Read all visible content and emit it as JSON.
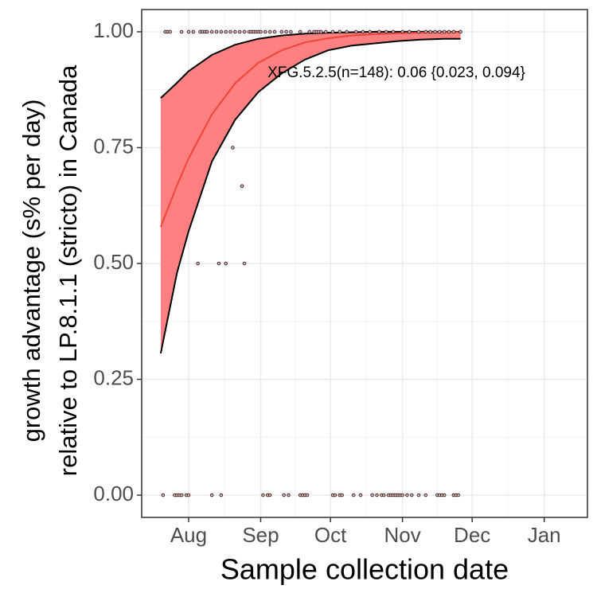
{
  "chart_data": {
    "type": "scatter",
    "y_label": [
      "growth advantage (s% per day)",
      "relative to LP.8.1.1 (stricto) in Canada"
    ],
    "x_label": "Sample collection date",
    "annotation": "XFG.5.2.5(n=148): 0.06 {0.023, 0.094}",
    "xlim": [
      -20.2,
      171.6
    ],
    "ylim": [
      -0.048,
      1.048
    ],
    "xticks": [
      {
        "value": 0,
        "label": "Aug"
      },
      {
        "value": 31,
        "label": "Sep"
      },
      {
        "value": 61,
        "label": "Oct"
      },
      {
        "value": 92,
        "label": "Nov"
      },
      {
        "value": 122,
        "label": "Dec"
      },
      {
        "value": 153,
        "label": "Jan"
      }
    ],
    "yticks": [
      {
        "value": 0,
        "label": "0.00"
      },
      {
        "value": 0.25,
        "label": "0.25"
      },
      {
        "value": 0.5,
        "label": "0.50"
      },
      {
        "value": 0.75,
        "label": "0.75"
      },
      {
        "value": 1,
        "label": "1.00"
      }
    ],
    "grid": true,
    "points": {
      "color": "#333333",
      "fill": "#f4b0b0",
      "x": [
        -10,
        -9,
        -8,
        -3,
        0,
        2,
        5,
        6,
        7,
        8,
        10,
        12,
        14,
        16,
        18,
        20,
        22,
        24,
        26,
        27,
        28,
        29,
        30,
        31,
        33,
        35,
        37,
        40,
        42,
        44,
        48,
        52,
        54,
        55,
        56,
        57,
        59,
        62,
        65,
        68,
        72,
        75,
        78,
        82,
        85,
        88,
        92,
        95,
        99,
        102,
        104,
        106,
        108,
        110,
        112,
        114,
        117,
        -11,
        -6,
        -5,
        -4,
        -3,
        -1,
        0,
        10,
        14,
        32,
        34,
        35,
        41,
        43,
        48,
        49,
        50,
        51,
        62,
        63,
        65,
        66,
        71,
        74,
        79,
        81,
        83,
        84,
        86,
        87,
        88,
        89,
        90,
        91,
        92,
        94,
        96,
        99,
        102,
        107,
        108,
        109,
        110,
        114,
        115,
        116,
        19,
        23,
        4,
        13,
        16,
        24
      ],
      "values": [
        1,
        1,
        1,
        1,
        1,
        1,
        1,
        1,
        1,
        1,
        1,
        1,
        1,
        1,
        1,
        1,
        1,
        1,
        1,
        1,
        1,
        1,
        1,
        1,
        1,
        1,
        1,
        1,
        1,
        1,
        1,
        1,
        1,
        1,
        1,
        1,
        1,
        1,
        1,
        1,
        1,
        1,
        1,
        1,
        1,
        1,
        1,
        1,
        1,
        1,
        1,
        1,
        1,
        1,
        1,
        1,
        1,
        0,
        0,
        0,
        0,
        0,
        0,
        0,
        0,
        0,
        0,
        0,
        0,
        0,
        0,
        0,
        0,
        0,
        0,
        0,
        0,
        0,
        0,
        0,
        0,
        0,
        0,
        0,
        0,
        0,
        0,
        0,
        0,
        0,
        0,
        0,
        0,
        0,
        0,
        0,
        0,
        0,
        0,
        0,
        0,
        0,
        0,
        0.75,
        0.667,
        0.5,
        0.5,
        0.5,
        0.5
      ]
    },
    "fit": {
      "line_color": "#f0443a",
      "ribbon_color": "#ff8080",
      "x": [
        -12,
        -5,
        0,
        10,
        20,
        30,
        40,
        50,
        60,
        70,
        80,
        90,
        100,
        110,
        117
      ],
      "values": [
        0.579,
        0.669,
        0.727,
        0.822,
        0.889,
        0.933,
        0.96,
        0.977,
        0.986,
        0.992,
        0.995,
        0.997,
        0.998,
        0.999,
        0.999
      ],
      "lower": [
        0.306,
        0.48,
        0.57,
        0.72,
        0.81,
        0.87,
        0.91,
        0.94,
        0.96,
        0.97,
        0.975,
        0.98,
        0.983,
        0.985,
        0.985
      ],
      "upper": [
        0.857,
        0.89,
        0.915,
        0.95,
        0.972,
        0.985,
        0.992,
        0.996,
        0.998,
        0.999,
        1,
        1,
        1,
        1,
        1
      ]
    }
  }
}
